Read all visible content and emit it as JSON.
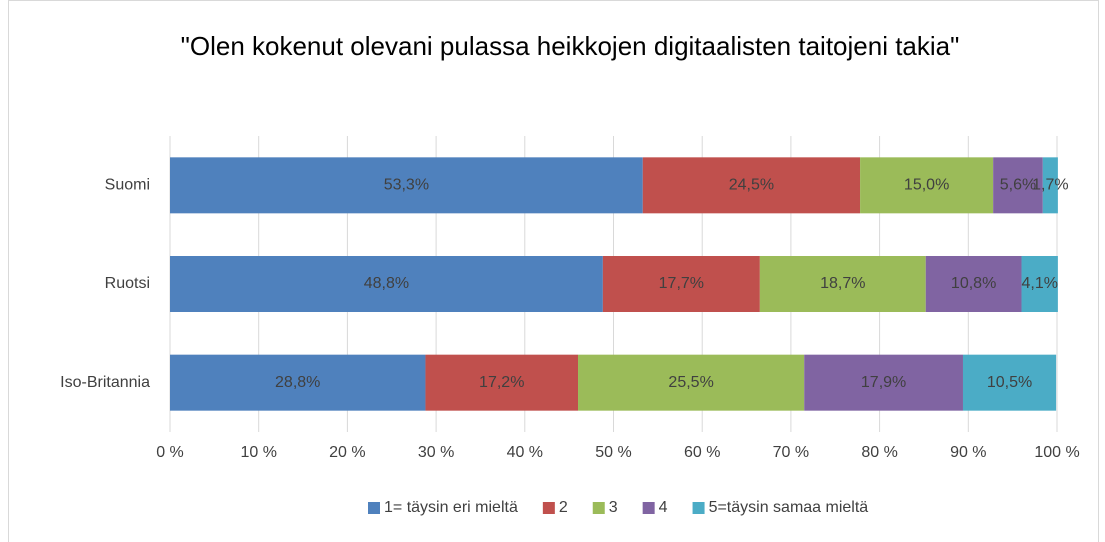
{
  "chart_data": {
    "type": "stacked-bar-horizontal",
    "title": "\"Olen kokenut olevani pulassa heikkojen digitaalisten taitojeni takia\"",
    "categories": [
      "Suomi",
      "Ruotsi",
      "Iso-Britannia"
    ],
    "series": [
      {
        "name": "1= täysin eri mieltä",
        "color": "#4f81bd",
        "values": [
          53.3,
          48.8,
          28.8
        ],
        "value_labels": [
          "53,3%",
          "48,8%",
          "28,8%"
        ]
      },
      {
        "name": "2",
        "color": "#c0504d",
        "values": [
          24.5,
          17.7,
          17.2
        ],
        "value_labels": [
          "24,5%",
          "17,7%",
          "17,2%"
        ]
      },
      {
        "name": "3",
        "color": "#9bbb59",
        "values": [
          15.0,
          18.7,
          25.5
        ],
        "value_labels": [
          "15,0%",
          "18,7%",
          "25,5%"
        ]
      },
      {
        "name": "4",
        "color": "#8064a2",
        "values": [
          5.6,
          10.8,
          17.9
        ],
        "value_labels": [
          "5,6%",
          "10,8%",
          "17,9%"
        ]
      },
      {
        "name": "5=täysin samaa mieltä",
        "color": "#4bacc6",
        "values": [
          1.7,
          4.1,
          10.5
        ],
        "value_labels": [
          "1,7%",
          "4,1%",
          "10,5%"
        ]
      }
    ],
    "xlim": [
      0,
      100
    ],
    "xticks": [
      {
        "value": 0,
        "label": "0 %"
      },
      {
        "value": 10,
        "label": "10 %"
      },
      {
        "value": 20,
        "label": "20 %"
      },
      {
        "value": 30,
        "label": "30 %"
      },
      {
        "value": 40,
        "label": "40 %"
      },
      {
        "value": 50,
        "label": "50 %"
      },
      {
        "value": 60,
        "label": "60 %"
      },
      {
        "value": 70,
        "label": "70 %"
      },
      {
        "value": 80,
        "label": "80 %"
      },
      {
        "value": 90,
        "label": "90 %"
      },
      {
        "value": 100,
        "label": "100 %"
      }
    ],
    "grid": true,
    "legend": "bottom"
  }
}
